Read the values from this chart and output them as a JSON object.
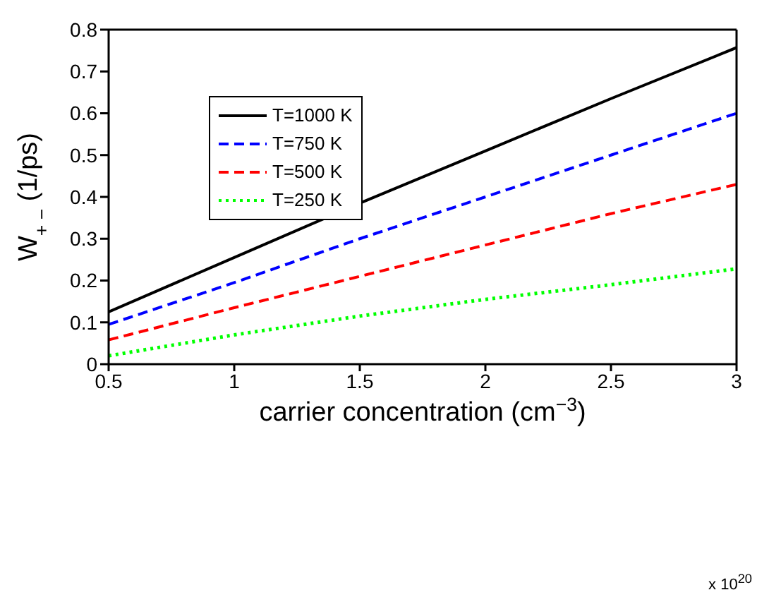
{
  "chart_data": {
    "type": "line",
    "xlabel": "carrier concentration (cm$^{−3}$)",
    "ylabel": "W$_{+ −}$ (1/ps)",
    "annotations": [
      "x 10$^{20}$"
    ],
    "x": [
      0.5,
      1,
      1.5,
      2,
      2.5,
      3
    ],
    "series": [
      {
        "name": "T=1000 K",
        "color": "#000000",
        "line_style": "solid",
        "values": [
          0.125,
          0.255,
          0.385,
          0.51,
          0.635,
          0.757
        ]
      },
      {
        "name": "T=750 K",
        "color": "#0000ff",
        "line_style": "dashed",
        "values": [
          0.095,
          0.195,
          0.3,
          0.4,
          0.5,
          0.6
        ]
      },
      {
        "name": "T=500 K",
        "color": "#ff0000",
        "line_style": "dashed",
        "values": [
          0.058,
          0.135,
          0.21,
          0.285,
          0.36,
          0.43
        ]
      },
      {
        "name": "T=250 K",
        "color": "#00ff00",
        "line_style": "dotted",
        "values": [
          0.02,
          0.07,
          0.115,
          0.155,
          0.19,
          0.228
        ]
      }
    ],
    "xlim": [
      0.5,
      3
    ],
    "xticks": [
      0.5,
      1,
      1.5,
      2,
      2.5,
      3
    ],
    "ylim": [
      0,
      0.8
    ],
    "yticks": [
      0,
      0.1,
      0.2,
      0.3,
      0.4,
      0.5,
      0.6,
      0.7,
      0.8
    ],
    "grid": false,
    "legend": "top left",
    "marker": "none"
  }
}
